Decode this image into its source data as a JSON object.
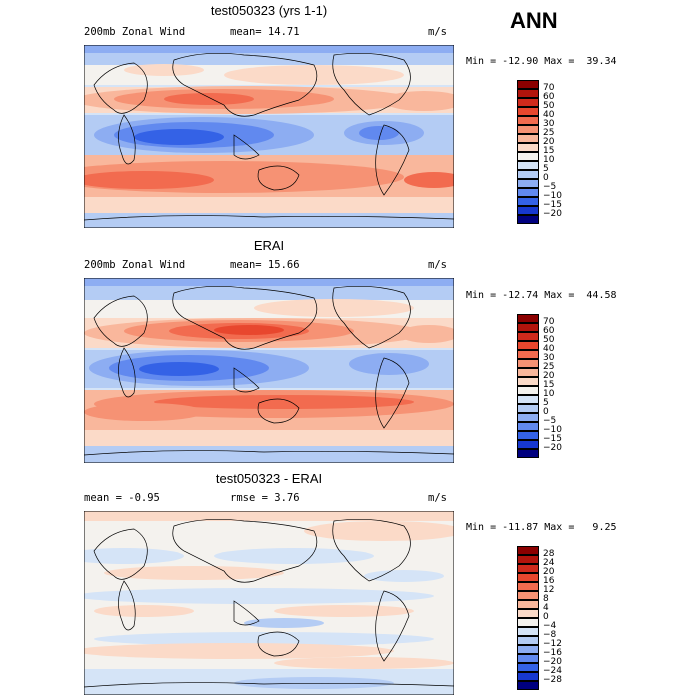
{
  "season": "ANN",
  "panels": [
    {
      "title": "test050323 (yrs 1-1)",
      "left_text": "200mb Zonal Wind",
      "mean_text": "mean=  14.71",
      "units": "m/s",
      "minmax": "Min = -12.90 Max =  39.34",
      "colorbar": {
        "labels": [
          "70",
          "60",
          "50",
          "40",
          "30",
          "25",
          "20",
          "15",
          "10",
          "5",
          "0",
          "−5",
          "−10",
          "−15",
          "−20"
        ],
        "colors": [
          "#8b0000",
          "#b2140c",
          "#cf2a1c",
          "#e8472e",
          "#f26b4f",
          "#f69274",
          "#f9b79c",
          "#fbdac8",
          "#f4f2ee",
          "#d5e4f7",
          "#b4ccf4",
          "#8dadf2",
          "#6189ef",
          "#3462e6",
          "#1738cf",
          "#00007f"
        ]
      }
    },
    {
      "title": "ERAI",
      "left_text": "200mb Zonal Wind",
      "mean_text": "mean=  15.66",
      "units": "m/s",
      "minmax": "Min = -12.74 Max =  44.58",
      "colorbar": {
        "labels": [
          "70",
          "60",
          "50",
          "40",
          "30",
          "25",
          "20",
          "15",
          "10",
          "5",
          "0",
          "−5",
          "−10",
          "−15",
          "−20"
        ],
        "colors": [
          "#8b0000",
          "#b2140c",
          "#cf2a1c",
          "#e8472e",
          "#f26b4f",
          "#f69274",
          "#f9b79c",
          "#fbdac8",
          "#f4f2ee",
          "#d5e4f7",
          "#b4ccf4",
          "#8dadf2",
          "#6189ef",
          "#3462e6",
          "#1738cf",
          "#00007f"
        ]
      }
    },
    {
      "title": "test050323 - ERAI",
      "left_text": "mean =  -0.95",
      "mean_text": "rmse =   3.76",
      "units": "m/s",
      "minmax": "Min = -11.87 Max =   9.25",
      "colorbar": {
        "labels": [
          "28",
          "24",
          "20",
          "16",
          "12",
          "8",
          "4",
          "0",
          "−4",
          "−8",
          "−12",
          "−16",
          "−20",
          "−24",
          "−28"
        ],
        "colors": [
          "#8b0000",
          "#b2140c",
          "#cf2a1c",
          "#e8472e",
          "#f26b4f",
          "#f69274",
          "#f9b79c",
          "#fbdac8",
          "#f4f2ee",
          "#d5e4f7",
          "#b4ccf4",
          "#8dadf2",
          "#6189ef",
          "#3462e6",
          "#1738cf",
          "#00007f"
        ]
      }
    }
  ]
}
